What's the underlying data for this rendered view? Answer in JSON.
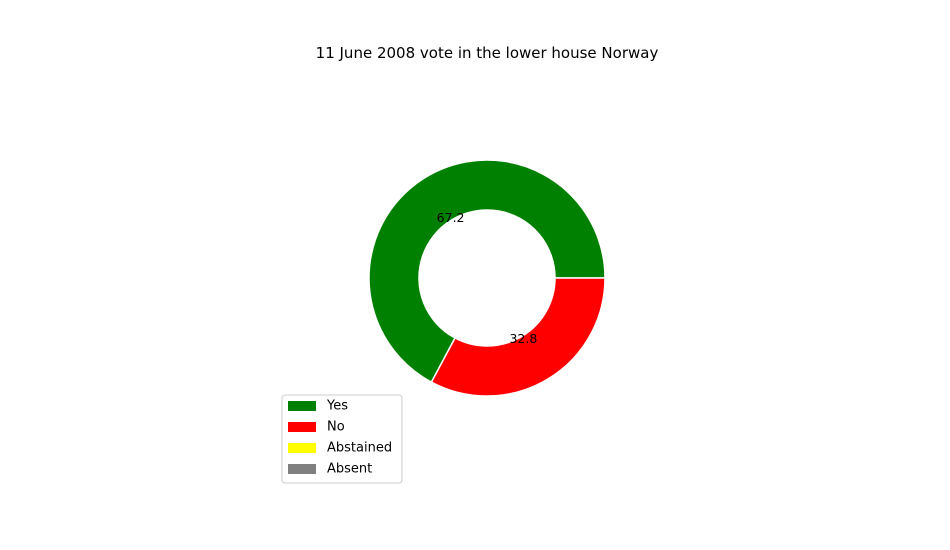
{
  "chart_data": {
    "type": "pie",
    "title": "11 June 2008 vote in the lower house Norway",
    "donut": true,
    "slices": [
      {
        "label": "Yes",
        "value": 67.2,
        "color": "#008000",
        "data_label": "67.2"
      },
      {
        "label": "No",
        "value": 32.8,
        "color": "#ff0000",
        "data_label": "32.8"
      },
      {
        "label": "Abstained",
        "value": 0,
        "color": "#ffff00",
        "data_label": ""
      },
      {
        "label": "Absent",
        "value": 0,
        "color": "#808080",
        "data_label": ""
      }
    ],
    "legend": {
      "placement": "lower-left",
      "entries": [
        {
          "label": "Yes",
          "color": "#008000"
        },
        {
          "label": "No",
          "color": "#ff0000"
        },
        {
          "label": "Abstained",
          "color": "#ffff00"
        },
        {
          "label": "Absent",
          "color": "#808080"
        }
      ]
    }
  }
}
